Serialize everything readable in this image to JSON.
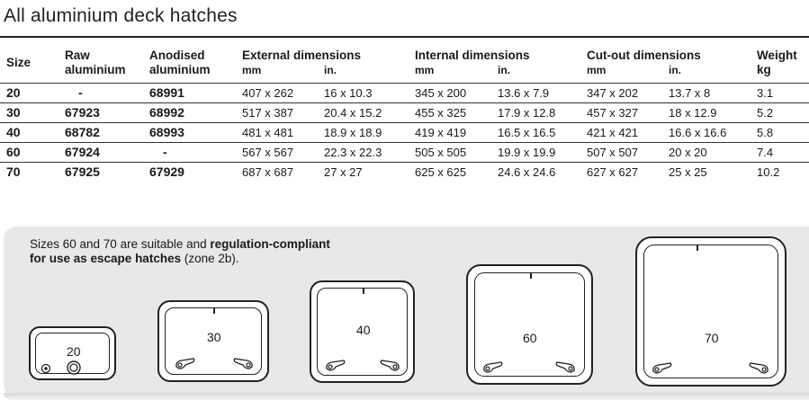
{
  "title": "All aluminium deck hatches",
  "headers": {
    "size": "Size",
    "raw": [
      "Raw",
      "aluminium"
    ],
    "anodised": [
      "Anodised",
      "aluminium"
    ],
    "external": "External dimensions",
    "internal": "Internal dimensions",
    "cutout": "Cut-out dimensions",
    "mm": "mm",
    "in": "in.",
    "weight": [
      "Weight",
      "kg"
    ]
  },
  "rows": [
    {
      "size": "20",
      "raw": "-",
      "anodised": "68991",
      "ext_mm": "407 x 262",
      "ext_in": "16 x 10.3",
      "int_mm": "345 x 200",
      "int_in": "13.6 x 7.9",
      "cut_mm": "347 x 202",
      "cut_in": "13.7 x 8",
      "weight": "3.1"
    },
    {
      "size": "30",
      "raw": "67923",
      "anodised": "68992",
      "ext_mm": "517 x 387",
      "ext_in": "20.4 x 15.2",
      "int_mm": "455 x 325",
      "int_in": "17.9 x 12.8",
      "cut_mm": "457 x 327",
      "cut_in": "18 x 12.9",
      "weight": "5.2"
    },
    {
      "size": "40",
      "raw": "68782",
      "anodised": "68993",
      "ext_mm": "481 x 481",
      "ext_in": "18.9 x 18.9",
      "int_mm": "419 x 419",
      "int_in": "16.5 x 16.5",
      "cut_mm": "421 x 421",
      "cut_in": "16.6 x 16.6",
      "weight": "5.8"
    },
    {
      "size": "60",
      "raw": "67924",
      "anodised": "-",
      "ext_mm": "567 x 567",
      "ext_in": "22.3 x 22.3",
      "int_mm": "505 x 505",
      "int_in": "19.9 x 19.9",
      "cut_mm": "507 x 507",
      "cut_in": "20 x 20",
      "weight": "7.4"
    },
    {
      "size": "70",
      "raw": "67925",
      "anodised": "67929",
      "ext_mm": "687 x 687",
      "ext_in": "27 x 27",
      "int_mm": "625 x 625",
      "int_in": "24.6 x 24.6",
      "cut_mm": "627 x 627",
      "cut_in": "25 x 25",
      "weight": "10.2"
    }
  ],
  "note": {
    "line1_normal": "Sizes 60 and 70 are suitable and ",
    "line1_bold": "regulation-compliant",
    "line2_bold": "for use as escape hatches",
    "line2_normal": " (zone 2b)."
  },
  "hatches": [
    "20",
    "30",
    "40",
    "60",
    "70"
  ],
  "icons": {
    "handle": "hatch-handle-icon",
    "knob": "hatch-knob-icon"
  },
  "colors": {
    "panel": "#e8e8e8",
    "ink": "#1a1a1a"
  }
}
